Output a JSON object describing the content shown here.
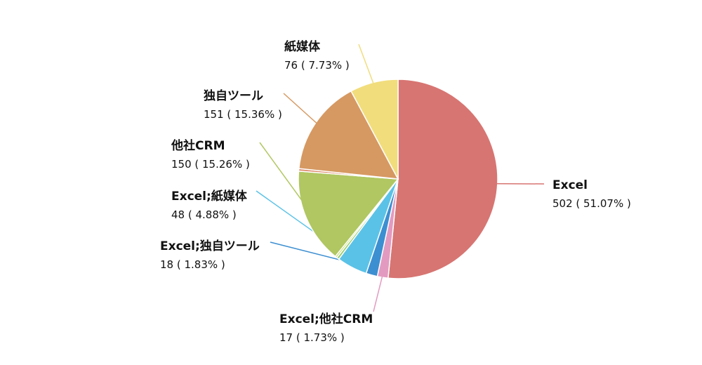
{
  "chart_data": {
    "type": "pie",
    "slices": [
      {
        "label": "Excel",
        "value": 502,
        "display": "502 ( 51.07% )",
        "color": "#d77572"
      },
      {
        "label": "Excel;他社CRM",
        "value": 17,
        "display": "17 ( 1.73% )",
        "color": "#e39ac0"
      },
      {
        "label": "Excel;独自ツール",
        "value": 18,
        "display": "18 ( 1.83% )",
        "color": "#3c8fd1"
      },
      {
        "label": "Excel;紙媒体",
        "value": 48,
        "display": "48 ( 4.88% )",
        "color": "#5bc2e7"
      },
      {
        "label": "",
        "value": 4,
        "display": "",
        "color": "#9bcd6c"
      },
      {
        "label": "",
        "value": 3,
        "display": "",
        "color": "#c5d96a"
      },
      {
        "label": "他社CRM",
        "value": 150,
        "display": "150 ( 15.26% )",
        "color": "#b0c762"
      },
      {
        "label": "",
        "value": 4,
        "display": "",
        "color": "#de8d6e"
      },
      {
        "label": "独自ツール",
        "value": 151,
        "display": "151 ( 15.36% )",
        "color": "#d69962"
      },
      {
        "label": "紙媒体",
        "value": 76,
        "display": "76 ( 7.73% )",
        "color": "#f1dd7c"
      }
    ]
  }
}
